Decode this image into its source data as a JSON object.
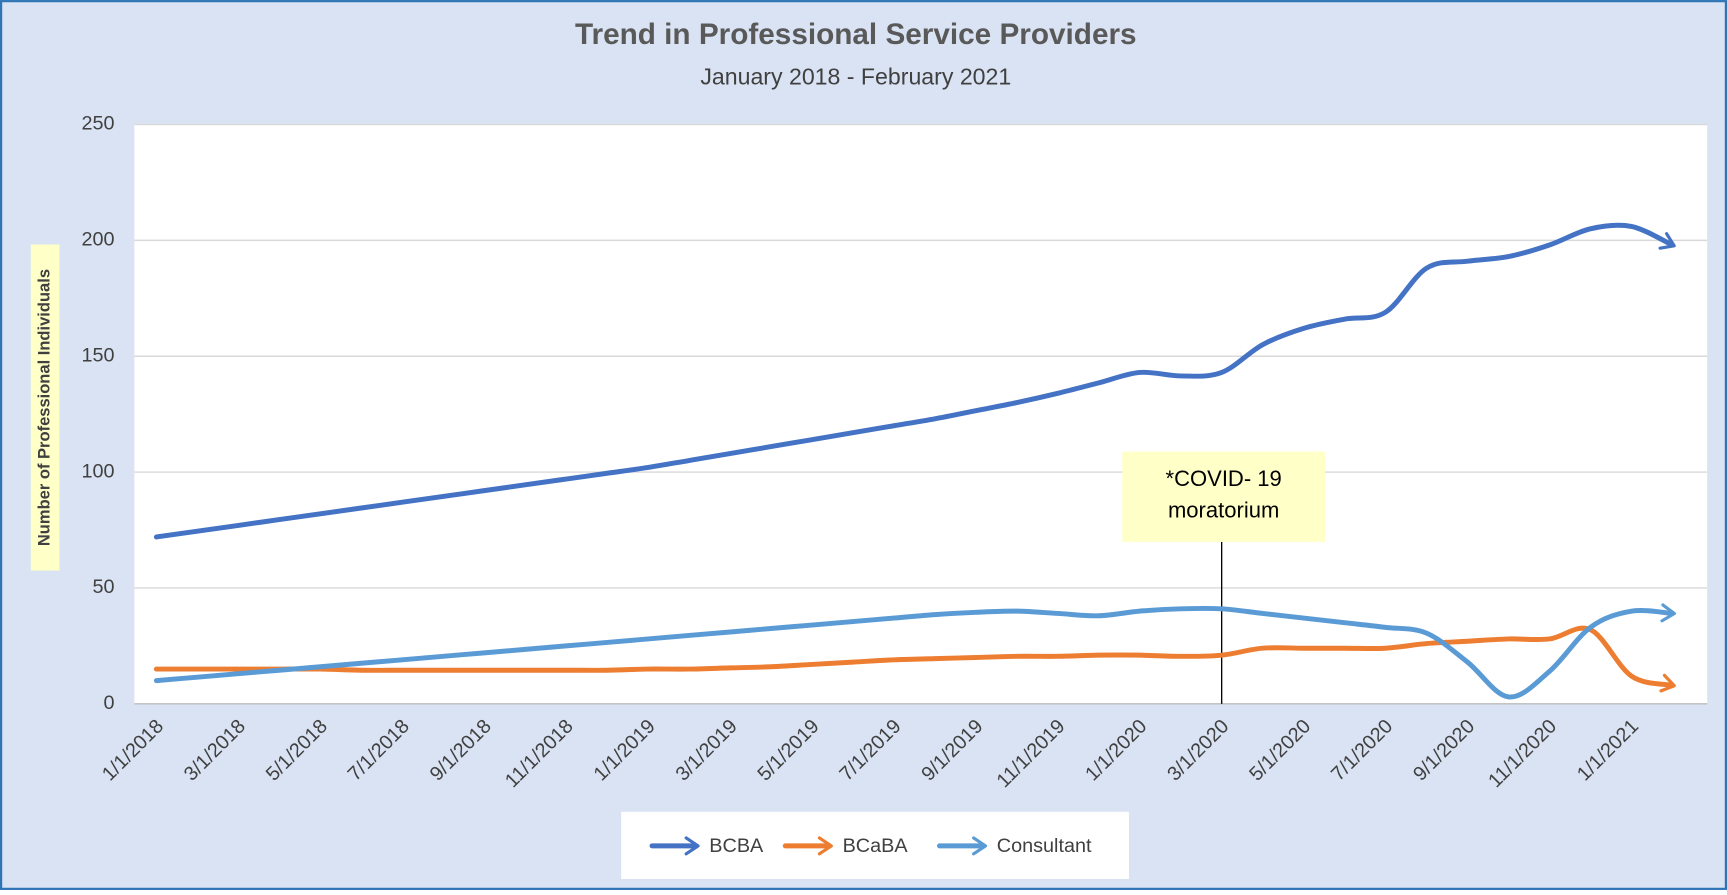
{
  "chart_data": {
    "type": "line",
    "title": "Trend in Professional Service Providers",
    "subtitle": "January 2018 - February 2021",
    "y_label": "Number of Professional Individuals",
    "categories": [
      "1/1/2018",
      null,
      "3/1/2018",
      null,
      "5/1/2018",
      null,
      "7/1/2018",
      null,
      "9/1/2018",
      null,
      "11/1/2018",
      null,
      "1/1/2019",
      null,
      "3/1/2019",
      null,
      "5/1/2019",
      null,
      "7/1/2019",
      null,
      "9/1/2019",
      null,
      "11/1/2019",
      null,
      "1/1/2020",
      null,
      "3/1/2020",
      null,
      "5/1/2020",
      null,
      "7/1/2020",
      null,
      "9/1/2020",
      null,
      "11/1/2020",
      null,
      "1/1/2021",
      null
    ],
    "series": [
      {
        "name": "BCBA",
        "color": "#4472c4",
        "values": [
          72,
          74.5,
          77,
          79.5,
          82,
          84.5,
          87,
          89.5,
          92,
          94.5,
          97,
          99.5,
          102,
          105,
          108,
          111,
          114,
          117,
          120,
          123,
          126.5,
          130,
          134,
          138.5,
          143,
          141.5,
          143,
          155,
          162,
          166,
          169,
          188,
          191,
          193,
          198,
          205,
          206,
          198
        ]
      },
      {
        "name": "BCaBA",
        "color": "#ed7d31",
        "values": [
          15,
          15,
          15,
          15,
          15,
          14.5,
          14.5,
          14.5,
          14.5,
          14.5,
          14.5,
          14.5,
          15,
          15,
          15.5,
          16,
          17,
          18,
          19,
          19.5,
          20,
          20.5,
          20.5,
          21,
          21,
          20.5,
          21,
          24,
          24,
          24,
          24,
          26,
          27,
          28,
          28,
          32,
          12,
          8
        ]
      },
      {
        "name": "Consultant",
        "color": "#5b9bd5",
        "values": [
          10,
          11.5,
          13,
          14.5,
          16,
          17.5,
          19,
          20.5,
          22,
          23.5,
          25,
          26.5,
          28,
          29.5,
          31,
          32.5,
          34,
          35.5,
          37,
          38.5,
          39.5,
          40,
          39,
          38,
          40,
          41,
          41,
          39,
          37,
          35,
          33,
          30.5,
          18,
          3,
          14,
          33,
          40,
          39
        ]
      }
    ],
    "ylim": [
      0,
      250
    ],
    "yticks": [
      0,
      50,
      100,
      150,
      200,
      250
    ],
    "grid": true,
    "annotation": {
      "text": "*COVID- 19 moratorium",
      "x": "3/1/2020"
    },
    "legend": "bottom"
  }
}
